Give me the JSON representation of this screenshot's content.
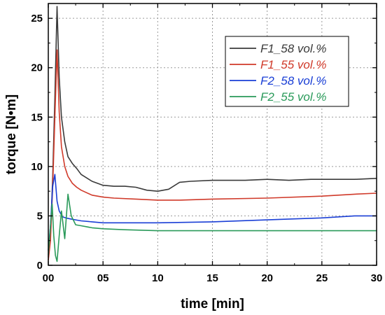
{
  "chart_data": {
    "type": "line",
    "xlabel": "time  [min]",
    "ylabel": "torque [N•m]",
    "xlim": [
      0,
      30
    ],
    "ylim": [
      0,
      26.5
    ],
    "x_ticks": [
      0,
      5,
      10,
      15,
      20,
      25,
      30
    ],
    "x_tick_labels": [
      "00",
      "05",
      "10",
      "15",
      "20",
      "25",
      "30"
    ],
    "y_ticks": [
      0,
      5,
      10,
      15,
      20,
      25
    ],
    "y_tick_labels": [
      "0",
      "5",
      "10",
      "15",
      "20",
      "25"
    ],
    "grid": true,
    "legend_position": "top-right",
    "series": [
      {
        "name": "F1_58 vol.%",
        "color": "#3a3a3a",
        "x": [
          0,
          0.2,
          0.4,
          0.6,
          0.8,
          1.0,
          1.2,
          1.5,
          1.8,
          2.2,
          2.6,
          3,
          4,
          5,
          6,
          7,
          8,
          9,
          10,
          11,
          12,
          13,
          15,
          18,
          20,
          22,
          24,
          26,
          28,
          30
        ],
        "y": [
          0.8,
          3,
          9,
          17,
          26.2,
          19,
          15,
          12.5,
          11,
          10.3,
          9.8,
          9.2,
          8.5,
          8.1,
          8.0,
          8.0,
          7.9,
          7.6,
          7.5,
          7.7,
          8.4,
          8.5,
          8.6,
          8.6,
          8.7,
          8.6,
          8.7,
          8.7,
          8.7,
          8.8
        ]
      },
      {
        "name": "F1_55 vol.%",
        "color": "#d03a2a",
        "x": [
          0,
          0.2,
          0.4,
          0.6,
          0.8,
          1.0,
          1.2,
          1.5,
          1.8,
          2.2,
          2.6,
          3,
          4,
          5,
          6,
          8,
          10,
          12,
          15,
          20,
          25,
          28,
          30
        ],
        "y": [
          0.5,
          2.5,
          8,
          15,
          21.8,
          15.5,
          12,
          10,
          9,
          8.3,
          7.9,
          7.6,
          7.1,
          6.9,
          6.8,
          6.7,
          6.6,
          6.6,
          6.7,
          6.8,
          7.0,
          7.2,
          7.3
        ]
      },
      {
        "name": "F2_58 vol.%",
        "color": "#1a3fd6",
        "x": [
          0,
          0.2,
          0.4,
          0.6,
          0.8,
          1.0,
          1.3,
          1.6,
          2.0,
          2.5,
          3,
          4,
          5,
          7,
          10,
          15,
          20,
          25,
          28,
          30
        ],
        "y": [
          1.5,
          4,
          8,
          9.2,
          6.5,
          5.5,
          4.9,
          4.8,
          4.7,
          4.6,
          4.5,
          4.4,
          4.3,
          4.3,
          4.3,
          4.4,
          4.6,
          4.8,
          5.0,
          5.0
        ]
      },
      {
        "name": "F2_55 vol.%",
        "color": "#2a9a5a",
        "x": [
          0,
          0.2,
          0.35,
          0.5,
          0.65,
          0.8,
          1.0,
          1.2,
          1.5,
          1.8,
          2.1,
          2.5,
          3,
          4,
          5,
          7,
          10,
          15,
          20,
          25,
          30
        ],
        "y": [
          1,
          4,
          6.2,
          3,
          1,
          0.4,
          3,
          5.5,
          2.7,
          7.2,
          5,
          4.1,
          4.0,
          3.8,
          3.7,
          3.6,
          3.5,
          3.5,
          3.5,
          3.5,
          3.5
        ]
      }
    ]
  }
}
